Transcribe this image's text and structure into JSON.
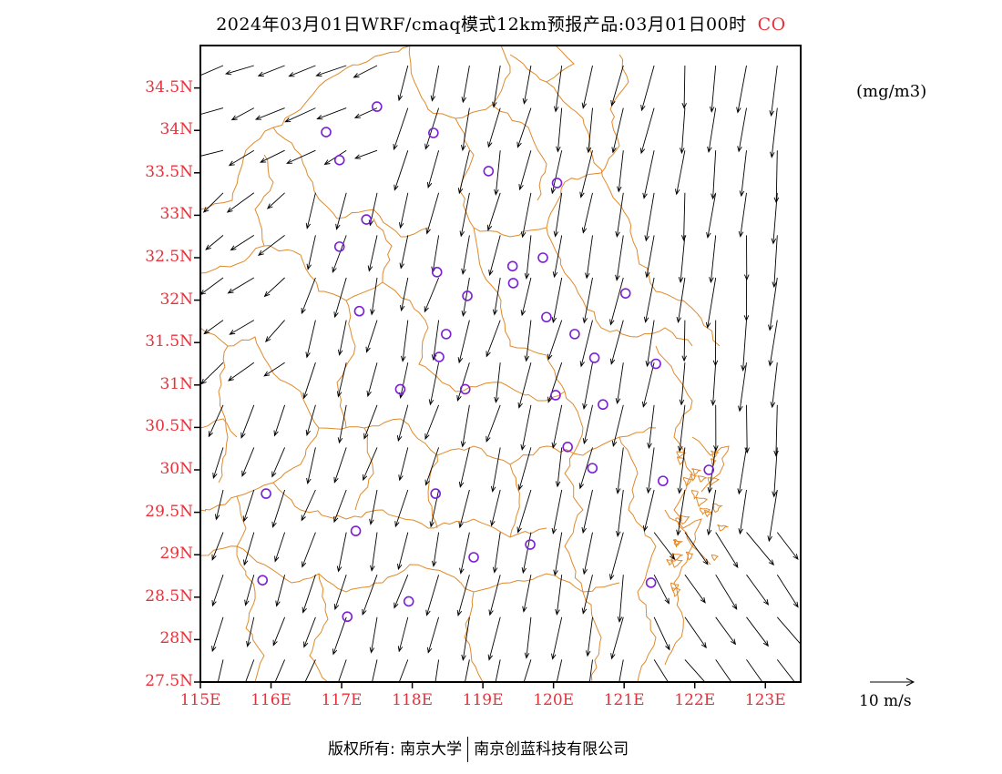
{
  "title": {
    "main": "2024年03月01日WRF/cmaq模式12km预报产品:03月01日00时",
    "species": "CO"
  },
  "units_label": "(mg/m3)",
  "reference_vector": {
    "label": "10  m/s",
    "speed_ms": 10
  },
  "copyright": {
    "owner": "版权所有: 南京大学",
    "partner": "南京创蓝科技有限公司"
  },
  "axes": {
    "lon_range": [
      115,
      123.5
    ],
    "lat_range": [
      27.5,
      35
    ],
    "lon_ticks": [
      {
        "v": 115,
        "label": "115E"
      },
      {
        "v": 116,
        "label": "116E"
      },
      {
        "v": 117,
        "label": "117E"
      },
      {
        "v": 118,
        "label": "118E"
      },
      {
        "v": 119,
        "label": "119E"
      },
      {
        "v": 120,
        "label": "120E"
      },
      {
        "v": 121,
        "label": "121E"
      },
      {
        "v": 122,
        "label": "122E"
      },
      {
        "v": 123,
        "label": "123E"
      }
    ],
    "lat_ticks": [
      {
        "v": 27.5,
        "label": "27.5N"
      },
      {
        "v": 28,
        "label": "28N"
      },
      {
        "v": 28.5,
        "label": "28.5N"
      },
      {
        "v": 29,
        "label": "29N"
      },
      {
        "v": 29.5,
        "label": "29.5N"
      },
      {
        "v": 30,
        "label": "30N"
      },
      {
        "v": 30.5,
        "label": "30.5N"
      },
      {
        "v": 31,
        "label": "31N"
      },
      {
        "v": 31.5,
        "label": "31.5N"
      },
      {
        "v": 32,
        "label": "32N"
      },
      {
        "v": 32.5,
        "label": "32.5N"
      },
      {
        "v": 33,
        "label": "33N"
      },
      {
        "v": 33.5,
        "label": "33.5N"
      },
      {
        "v": 34,
        "label": "34N"
      },
      {
        "v": 34.5,
        "label": "34.5N"
      }
    ]
  },
  "colors": {
    "boundary": "#e08a2a",
    "station": "#7a1fd6",
    "axis_label": "#e8303a",
    "arrow": "#000000"
  },
  "stations": [
    [
      117.5,
      34.28
    ],
    [
      116.78,
      33.98
    ],
    [
      116.97,
      33.65
    ],
    [
      118.3,
      33.97
    ],
    [
      119.08,
      33.52
    ],
    [
      120.05,
      33.38
    ],
    [
      117.35,
      32.95
    ],
    [
      116.97,
      32.63
    ],
    [
      118.35,
      32.33
    ],
    [
      119.42,
      32.4
    ],
    [
      119.85,
      32.5
    ],
    [
      119.43,
      32.2
    ],
    [
      118.78,
      32.05
    ],
    [
      121.02,
      32.08
    ],
    [
      117.25,
      31.87
    ],
    [
      119.9,
      31.8
    ],
    [
      118.48,
      31.6
    ],
    [
      120.3,
      31.6
    ],
    [
      118.38,
      31.33
    ],
    [
      120.58,
      31.32
    ],
    [
      121.45,
      31.25
    ],
    [
      117.83,
      30.95
    ],
    [
      118.75,
      30.95
    ],
    [
      120.03,
      30.88
    ],
    [
      120.7,
      30.77
    ],
    [
      120.2,
      30.27
    ],
    [
      120.55,
      30.02
    ],
    [
      121.55,
      29.87
    ],
    [
      122.2,
      30.0
    ],
    [
      115.93,
      29.72
    ],
    [
      118.33,
      29.72
    ],
    [
      117.2,
      29.28
    ],
    [
      119.67,
      29.12
    ],
    [
      118.87,
      28.97
    ],
    [
      115.88,
      28.7
    ],
    [
      121.38,
      28.67
    ],
    [
      117.95,
      28.45
    ],
    [
      117.08,
      28.27
    ]
  ],
  "wind_field_note": "",
  "boundaries_note": ""
}
